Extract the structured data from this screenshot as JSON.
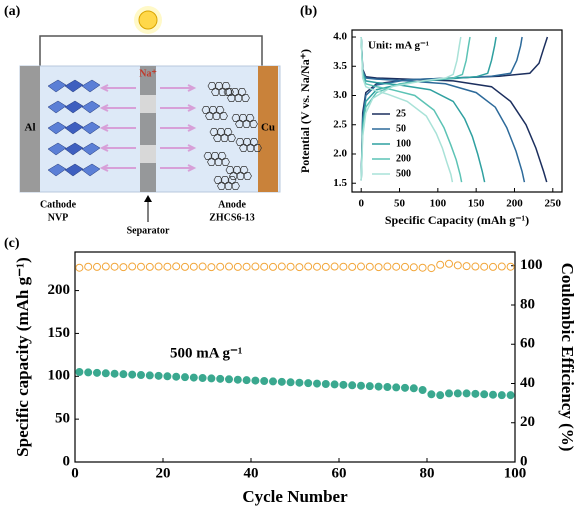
{
  "diagram": {
    "label": "(a)",
    "collector_left": "Al",
    "collector_right": "Cu",
    "ion": "Na⁺",
    "cathode": [
      "Cathode",
      "NVP"
    ],
    "separator": "Separator",
    "anode": [
      "Anode",
      "ZHCS6-13"
    ]
  },
  "chart_data": [
    {
      "type": "line",
      "panel_label": "(b)",
      "annotation": "Unit: mA g⁻¹",
      "x_label": "Specific Capacity (mAh g⁻¹)",
      "y_label": "Potential (V vs. Na/Na⁺)",
      "xlim": [
        -12,
        262
      ],
      "xticks": [
        0,
        50,
        100,
        150,
        200,
        250
      ],
      "ylim": [
        1.35,
        4.12
      ],
      "yticks": [
        {
          "value": 1.5,
          "label": "1.5"
        },
        {
          "value": 2,
          "label": "2.0"
        },
        {
          "value": 2.5,
          "label": "2.5"
        },
        {
          "value": 3,
          "label": "3.0"
        },
        {
          "value": 3.5,
          "label": "3.5"
        },
        {
          "value": 4,
          "label": "4.0"
        }
      ],
      "legend": "lower-left",
      "series": [
        {
          "name": "25",
          "color": "#1c2f5e",
          "x": [
            0,
            2,
            6,
            20,
            60,
            120,
            180,
            220,
            232,
            238,
            243,
            null,
            0,
            2,
            6,
            20,
            60,
            120,
            170,
            195,
            215,
            228,
            238,
            242
          ],
          "values": [
            1.55,
            2.7,
            3.05,
            3.2,
            3.27,
            3.3,
            3.33,
            3.38,
            3.55,
            3.8,
            4.0,
            null,
            4.0,
            3.45,
            3.32,
            3.3,
            3.28,
            3.25,
            3.15,
            2.9,
            2.5,
            2.1,
            1.7,
            1.52
          ]
        },
        {
          "name": "50",
          "color": "#2d6a9a",
          "x": [
            0,
            2,
            6,
            20,
            60,
            120,
            170,
            195,
            203,
            208,
            210,
            null,
            0,
            2,
            6,
            20,
            60,
            110,
            150,
            175,
            190,
            202,
            210,
            213
          ],
          "values": [
            1.55,
            2.6,
            3.0,
            3.18,
            3.27,
            3.3,
            3.33,
            3.38,
            3.6,
            3.85,
            4.0,
            null,
            4.0,
            3.42,
            3.3,
            3.28,
            3.25,
            3.2,
            3.05,
            2.8,
            2.45,
            2.05,
            1.7,
            1.52
          ]
        },
        {
          "name": "100",
          "color": "#2fa0a0",
          "x": [
            0,
            2,
            6,
            20,
            60,
            110,
            150,
            165,
            170,
            174,
            176,
            null,
            0,
            2,
            6,
            20,
            50,
            90,
            120,
            135,
            145,
            152,
            158,
            161
          ],
          "values": [
            1.55,
            2.5,
            2.9,
            3.1,
            3.22,
            3.28,
            3.32,
            3.38,
            3.6,
            3.85,
            4.0,
            null,
            4.0,
            3.4,
            3.25,
            3.22,
            3.18,
            3.1,
            2.9,
            2.6,
            2.3,
            2.0,
            1.7,
            1.52
          ]
        },
        {
          "name": "200",
          "color": "#5cc3b5",
          "x": [
            0,
            2,
            6,
            20,
            50,
            90,
            120,
            132,
            137,
            140,
            142,
            null,
            0,
            2,
            6,
            20,
            40,
            70,
            95,
            108,
            117,
            124,
            129,
            131
          ],
          "values": [
            1.55,
            2.4,
            2.8,
            3.05,
            3.2,
            3.26,
            3.3,
            3.36,
            3.6,
            3.85,
            4.0,
            null,
            4.0,
            3.35,
            3.2,
            3.15,
            3.1,
            3.0,
            2.75,
            2.45,
            2.15,
            1.9,
            1.65,
            1.52
          ]
        },
        {
          "name": "500",
          "color": "#a9e2d8",
          "x": [
            0,
            2,
            6,
            15,
            40,
            80,
            110,
            120,
            125,
            128,
            130,
            null,
            0,
            2,
            6,
            15,
            35,
            60,
            85,
            98,
            106,
            112,
            117,
            119
          ],
          "values": [
            1.55,
            2.3,
            2.7,
            2.95,
            3.15,
            3.25,
            3.3,
            3.36,
            3.6,
            3.85,
            4.0,
            null,
            4.0,
            3.3,
            3.15,
            3.1,
            3.02,
            2.9,
            2.65,
            2.35,
            2.1,
            1.85,
            1.65,
            1.52
          ]
        }
      ]
    },
    {
      "type": "scatter",
      "panel_label": "(c)",
      "annotation": "500 mA g⁻¹",
      "x_label": "Cycle Number",
      "y_label": "Specific capacity (mAh g⁻¹)",
      "y2_label": "Coulombic Efficiency (%)",
      "xlim": [
        0,
        100
      ],
      "xticks": [
        0,
        20,
        40,
        60,
        80,
        100
      ],
      "ylim": [
        0,
        245
      ],
      "yticks": [
        0,
        50,
        100,
        150,
        200
      ],
      "y2lim": [
        0,
        107
      ],
      "y2ticks": [
        0,
        20,
        40,
        60,
        80,
        100
      ],
      "x": [
        1,
        3,
        5,
        7,
        9,
        11,
        13,
        15,
        17,
        19,
        21,
        23,
        25,
        27,
        29,
        31,
        33,
        35,
        37,
        39,
        41,
        43,
        45,
        47,
        49,
        51,
        53,
        55,
        57,
        59,
        61,
        63,
        65,
        67,
        69,
        71,
        73,
        75,
        77,
        79,
        81,
        83,
        85,
        87,
        89,
        91,
        93,
        95,
        97,
        99
      ],
      "series": [
        {
          "color": "#3aa88f",
          "filled": true,
          "values": [
            105,
            104.5,
            104,
            103.5,
            103,
            102.5,
            102,
            101.5,
            101,
            100.5,
            100,
            99.5,
            99,
            98.5,
            98,
            97.5,
            97,
            96.5,
            96,
            95.5,
            95,
            94.5,
            94,
            93.5,
            93,
            92.5,
            92,
            91.5,
            91,
            90.5,
            90,
            89.5,
            89,
            88.5,
            88,
            87.5,
            87,
            86.5,
            86,
            84,
            79,
            78,
            80,
            80,
            80,
            79.5,
            79,
            78.5,
            78,
            78
          ]
        },
        {
          "color": "#f2a63a",
          "filled": false,
          "axis": "y2",
          "values": [
            99,
            99.5,
            99.4,
            99.6,
            99.5,
            99.3,
            99.6,
            99.5,
            99.4,
            99.6,
            99.5,
            99.7,
            99.4,
            99.5,
            99.6,
            99.3,
            99.5,
            99.6,
            99.4,
            99.5,
            99.6,
            99.5,
            99.4,
            99.6,
            99.5,
            99.3,
            99.6,
            99.5,
            99.4,
            99.6,
            99.5,
            99.4,
            99.6,
            99.5,
            99.3,
            99.6,
            99.5,
            99.4,
            99.2,
            99,
            98.8,
            100.5,
            101,
            100.2,
            99.8,
            99.6,
            99.5,
            99.4,
            99.6,
            99.5
          ]
        }
      ]
    }
  ]
}
